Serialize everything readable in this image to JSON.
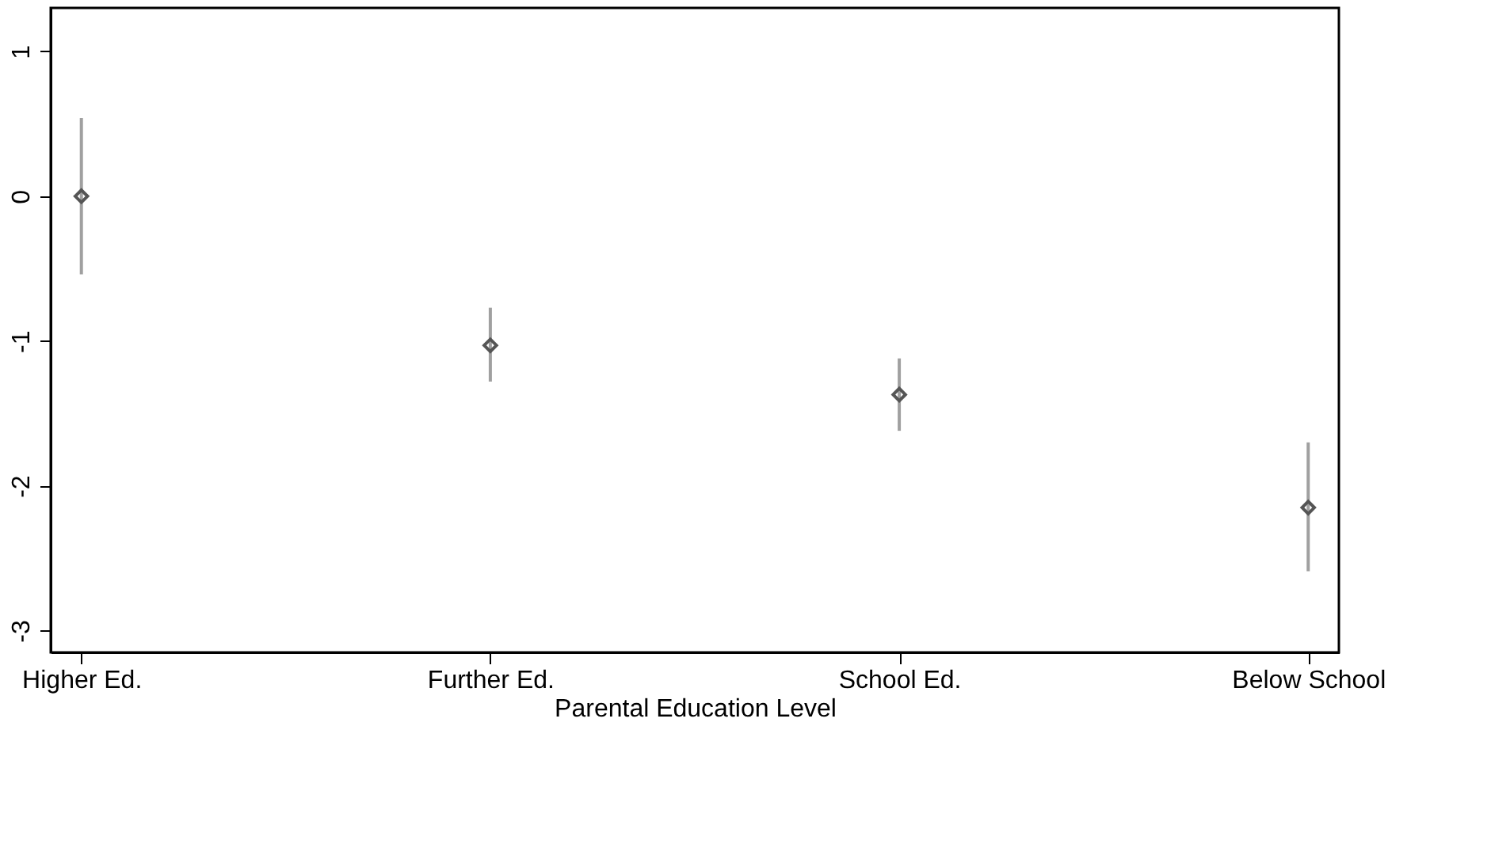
{
  "chart_data": {
    "type": "scatter",
    "xlabel": "Parental Education Level",
    "categories": [
      "Higher Ed.",
      "Further Ed.",
      "School Ed.",
      "Below School"
    ],
    "series": [
      {
        "color": "#555555",
        "values": [
          0,
          -1.03,
          -1.37,
          -2.15
        ],
        "errors": [
          [
            -0.54,
            0.54
          ],
          [
            -1.28,
            -0.77
          ],
          [
            -1.62,
            -1.12
          ],
          [
            -2.59,
            -1.7
          ]
        ]
      }
    ],
    "ylim": [
      -3.15,
      1.3
    ],
    "yticks": [
      -3,
      -2,
      -1,
      0,
      1
    ],
    "marker": "diamond",
    "grid": false
  }
}
